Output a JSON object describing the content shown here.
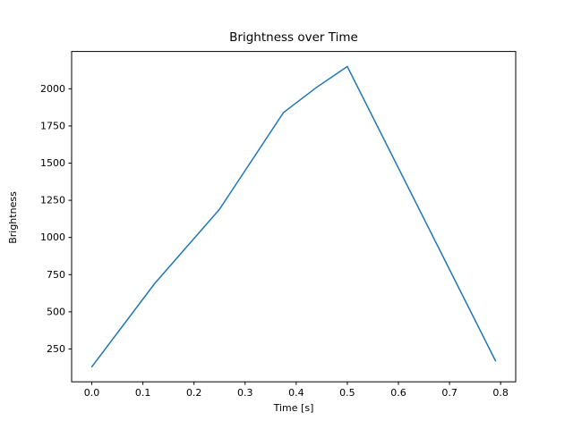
{
  "chart_data": {
    "type": "line",
    "title": "Brightness over Time",
    "xlabel": "Time [s]",
    "ylabel": "Brightness",
    "series": [
      {
        "name": "brightness",
        "color": "#1f77b4",
        "x": [
          0.0,
          0.123,
          0.25,
          0.375,
          0.44,
          0.5,
          0.79
        ],
        "y": [
          130,
          690,
          1190,
          1840,
          2010,
          2150,
          170
        ]
      }
    ],
    "xlim": [
      -0.0395,
      0.8295
    ],
    "ylim": [
      29,
      2251
    ],
    "xticks": [
      0.0,
      0.1,
      0.2,
      0.3,
      0.4,
      0.5,
      0.6,
      0.7,
      0.8
    ],
    "xtick_labels": [
      "0.0",
      "0.1",
      "0.2",
      "0.3",
      "0.4",
      "0.5",
      "0.6",
      "0.7",
      "0.8"
    ],
    "yticks": [
      250,
      500,
      750,
      1000,
      1250,
      1500,
      1750,
      2000
    ],
    "ytick_labels": [
      "250",
      "500",
      "750",
      "1000",
      "1250",
      "1500",
      "1750",
      "2000"
    ],
    "grid": false,
    "legend": null,
    "colors": {
      "background": "#ffffff",
      "axes_frame": "#000000",
      "text": "#000000",
      "line": "#1f77b4"
    }
  }
}
